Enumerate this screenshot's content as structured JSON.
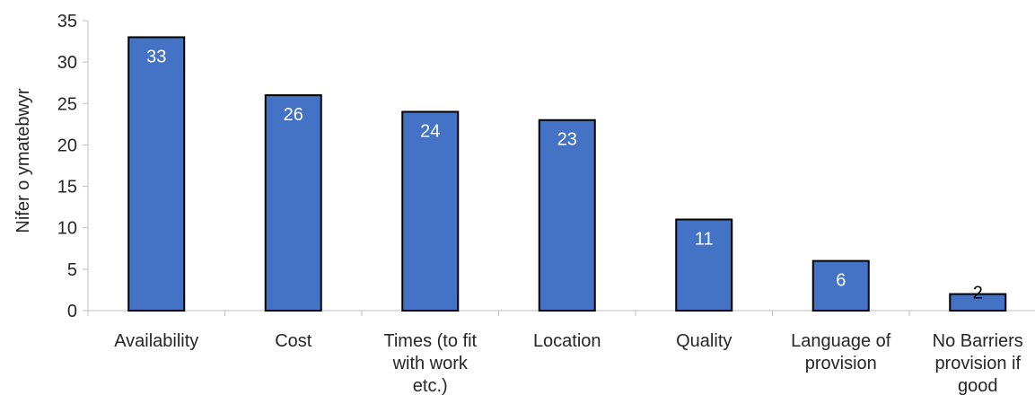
{
  "chart_data": {
    "type": "bar",
    "ylabel": "Nifer o ymatebwyr",
    "ylim": [
      0,
      35
    ],
    "ytick_step": 5,
    "grid": false,
    "bar_color": "#4472C4",
    "bar_edge_color": "#000000",
    "label_inside_color": "#ffffff",
    "label_outside_color": "#000000",
    "categories": [
      [
        "Availability"
      ],
      [
        "Cost"
      ],
      [
        "Times (to fit",
        "with work",
        "etc.)"
      ],
      [
        "Location"
      ],
      [
        "Quality"
      ],
      [
        "Language of",
        "provision"
      ],
      [
        "No Barriers",
        "provision if",
        "good"
      ]
    ],
    "values": [
      33,
      26,
      24,
      23,
      11,
      6,
      2
    ]
  }
}
